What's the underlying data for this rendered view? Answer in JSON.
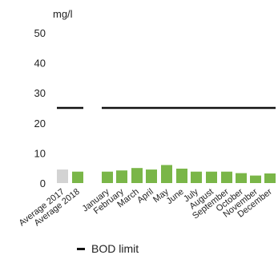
{
  "chart_data": {
    "type": "bar",
    "unit_label": "mg/l",
    "yticks": [
      0,
      10,
      20,
      30,
      40,
      50
    ],
    "ylim": [
      0,
      55
    ],
    "categories": [
      "Average 2017",
      "Average 2018",
      "January",
      "February",
      "March",
      "April",
      "May",
      "June",
      "July",
      "August",
      "September",
      "October",
      "November",
      "December"
    ],
    "values": [
      4.5,
      3.8,
      3.8,
      4.2,
      5.0,
      4.5,
      6.0,
      4.8,
      3.8,
      3.8,
      3.8,
      3.3,
      2.5,
      3.2
    ],
    "bar_colors": [
      "#d3d3d3",
      "#7ab648",
      "#7ab648",
      "#7ab648",
      "#7ab648",
      "#7ab648",
      "#7ab648",
      "#7ab648",
      "#7ab648",
      "#7ab648",
      "#7ab648",
      "#7ab648",
      "#7ab648",
      "#7ab648"
    ],
    "limit": {
      "name": "BOD limit",
      "value": 25,
      "color": "#111111"
    },
    "grid": false
  }
}
